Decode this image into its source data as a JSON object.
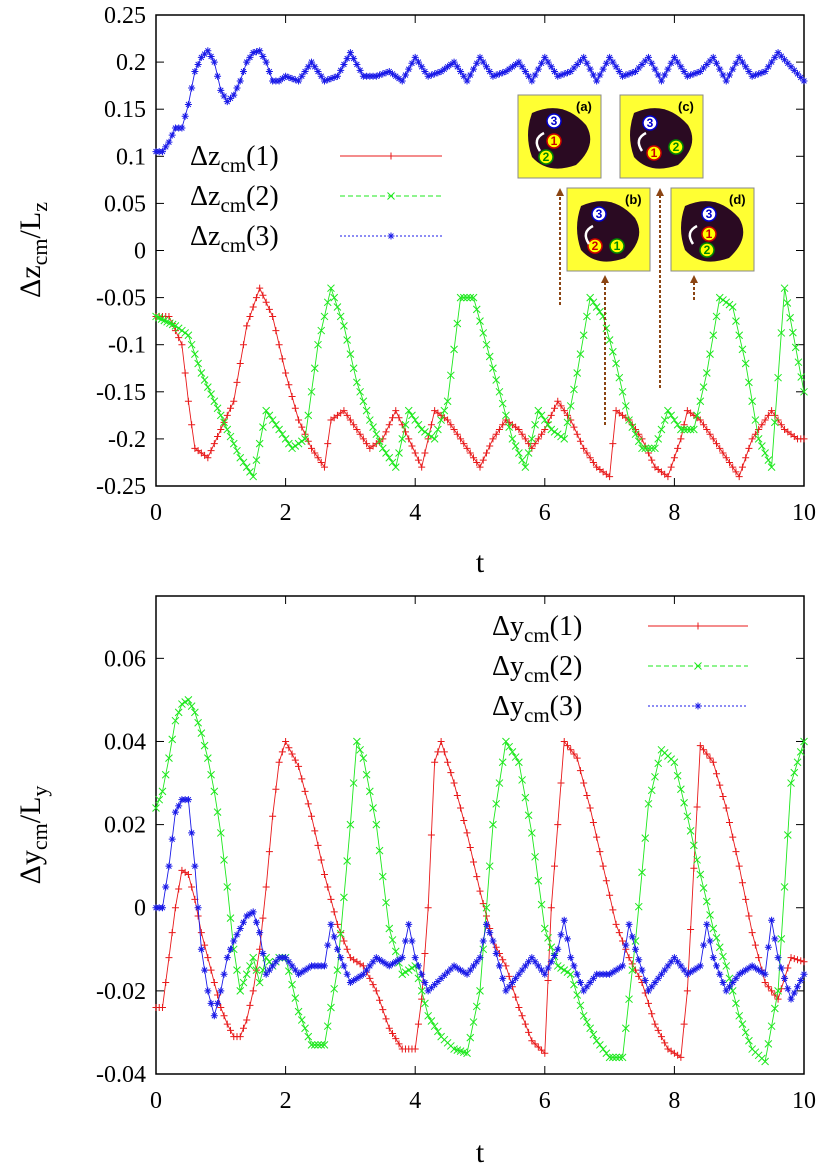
{
  "chart_data": [
    {
      "type": "line",
      "xlabel": "t",
      "ylabel": "Δz",
      "ylabel_sub": "cm",
      "ylabel_den": "/L",
      "ylabel_den_sub": "z",
      "xlim": [
        0,
        10
      ],
      "ylim": [
        -0.25,
        0.25
      ],
      "xticks": [
        "0",
        "2",
        "4",
        "6",
        "8",
        "10"
      ],
      "yticks": [
        "0.25",
        "0.2",
        "0.15",
        "0.1",
        "0.05",
        "0",
        "-0.05",
        "-0.1",
        "-0.15",
        "-0.2",
        "-0.25"
      ],
      "legend_position": "upper-left",
      "grid": false,
      "series": [
        {
          "name": "Δz(1)",
          "label_main": "Δz",
          "label_sub": "cm",
          "label_tail": "(1)",
          "color": "#e8191a",
          "marker": "plus",
          "x": [
            0,
            0.2,
            0.4,
            0.5,
            0.6,
            0.8,
            1.0,
            1.2,
            1.4,
            1.6,
            1.8,
            2.0,
            2.2,
            2.4,
            2.6,
            2.7,
            2.9,
            3.1,
            3.3,
            3.5,
            3.7,
            3.9,
            4.1,
            4.3,
            4.5,
            4.7,
            4.9,
            5.0,
            5.2,
            5.4,
            5.6,
            5.8,
            6.0,
            6.2,
            6.4,
            6.6,
            6.8,
            7.0,
            7.1,
            7.3,
            7.5,
            7.7,
            7.9,
            8.1,
            8.2,
            8.4,
            8.6,
            8.8,
            9.0,
            9.2,
            9.4,
            9.5,
            9.7,
            9.9,
            10.0
          ],
          "y": [
            -0.07,
            -0.07,
            -0.1,
            -0.16,
            -0.21,
            -0.22,
            -0.19,
            -0.16,
            -0.08,
            -0.04,
            -0.07,
            -0.13,
            -0.18,
            -0.21,
            -0.23,
            -0.18,
            -0.17,
            -0.19,
            -0.21,
            -0.2,
            -0.17,
            -0.2,
            -0.23,
            -0.17,
            -0.18,
            -0.2,
            -0.22,
            -0.23,
            -0.2,
            -0.18,
            -0.19,
            -0.21,
            -0.19,
            -0.16,
            -0.18,
            -0.21,
            -0.23,
            -0.24,
            -0.17,
            -0.18,
            -0.2,
            -0.23,
            -0.24,
            -0.2,
            -0.17,
            -0.18,
            -0.2,
            -0.22,
            -0.24,
            -0.2,
            -0.18,
            -0.17,
            -0.19,
            -0.2,
            -0.2
          ]
        },
        {
          "name": "Δz(2)",
          "label_main": "Δz",
          "label_sub": "cm",
          "label_tail": "(2)",
          "color": "#1ee81e",
          "marker": "cross",
          "x": [
            0,
            0.3,
            0.5,
            0.7,
            0.9,
            1.1,
            1.3,
            1.5,
            1.7,
            1.9,
            2.1,
            2.3,
            2.5,
            2.7,
            2.9,
            3.1,
            3.3,
            3.5,
            3.7,
            3.9,
            4.1,
            4.3,
            4.5,
            4.7,
            4.9,
            5.1,
            5.3,
            5.5,
            5.7,
            5.9,
            6.1,
            6.3,
            6.5,
            6.7,
            6.9,
            7.1,
            7.3,
            7.5,
            7.7,
            7.9,
            8.1,
            8.3,
            8.5,
            8.7,
            8.9,
            9.1,
            9.3,
            9.5,
            9.7,
            10.0
          ],
          "y": [
            -0.07,
            -0.08,
            -0.09,
            -0.13,
            -0.16,
            -0.19,
            -0.22,
            -0.24,
            -0.17,
            -0.19,
            -0.21,
            -0.2,
            -0.1,
            -0.04,
            -0.08,
            -0.14,
            -0.18,
            -0.21,
            -0.23,
            -0.17,
            -0.19,
            -0.2,
            -0.16,
            -0.05,
            -0.05,
            -0.1,
            -0.15,
            -0.2,
            -0.23,
            -0.17,
            -0.19,
            -0.2,
            -0.13,
            -0.05,
            -0.07,
            -0.12,
            -0.18,
            -0.21,
            -0.21,
            -0.17,
            -0.19,
            -0.19,
            -0.13,
            -0.05,
            -0.06,
            -0.12,
            -0.2,
            -0.23,
            -0.04,
            -0.15
          ]
        },
        {
          "name": "Δz(3)",
          "label_main": "Δz",
          "label_sub": "cm",
          "label_tail": "(3)",
          "color": "#1a1ae8",
          "marker": "star",
          "x": [
            0,
            0.1,
            0.2,
            0.3,
            0.4,
            0.5,
            0.6,
            0.7,
            0.8,
            0.9,
            1.0,
            1.1,
            1.2,
            1.3,
            1.4,
            1.5,
            1.6,
            1.7,
            1.8,
            1.9,
            2.0,
            2.2,
            2.4,
            2.6,
            2.8,
            3.0,
            3.2,
            3.4,
            3.6,
            3.8,
            4.0,
            4.2,
            4.4,
            4.6,
            4.8,
            5.0,
            5.2,
            5.4,
            5.6,
            5.8,
            6.0,
            6.2,
            6.4,
            6.6,
            6.8,
            7.0,
            7.2,
            7.4,
            7.6,
            7.8,
            8.0,
            8.2,
            8.4,
            8.6,
            8.8,
            9.0,
            9.2,
            9.4,
            9.6,
            9.8,
            10.0
          ],
          "y": [
            0.105,
            0.105,
            0.115,
            0.13,
            0.13,
            0.155,
            0.19,
            0.205,
            0.212,
            0.2,
            0.17,
            0.158,
            0.165,
            0.18,
            0.2,
            0.21,
            0.212,
            0.2,
            0.18,
            0.18,
            0.185,
            0.18,
            0.2,
            0.18,
            0.185,
            0.21,
            0.185,
            0.185,
            0.19,
            0.18,
            0.205,
            0.185,
            0.19,
            0.2,
            0.18,
            0.205,
            0.185,
            0.19,
            0.2,
            0.18,
            0.205,
            0.185,
            0.19,
            0.205,
            0.18,
            0.205,
            0.185,
            0.19,
            0.205,
            0.18,
            0.205,
            0.185,
            0.19,
            0.205,
            0.18,
            0.205,
            0.185,
            0.19,
            0.21,
            0.195,
            0.18
          ]
        }
      ],
      "insets": [
        {
          "label": "(a)",
          "numbers": [
            "3",
            "1",
            "2"
          ]
        },
        {
          "label": "(b)",
          "numbers": [
            "3",
            "2",
            "1"
          ]
        },
        {
          "label": "(c)",
          "numbers": [
            "3",
            "1",
            "2"
          ]
        },
        {
          "label": "(d)",
          "numbers": [
            "3",
            "1",
            "2"
          ]
        }
      ],
      "inset_colors": {
        "background": "#ffff33",
        "blob": "#2a0a22",
        "arrow": "#8b4513"
      }
    },
    {
      "type": "line",
      "xlabel": "t",
      "ylabel": "Δy",
      "ylabel_sub": "cm",
      "ylabel_den": "/L",
      "ylabel_den_sub": "y",
      "xlim": [
        0,
        10
      ],
      "ylim": [
        -0.04,
        0.075
      ],
      "xticks": [
        "0",
        "2",
        "4",
        "6",
        "8",
        "10"
      ],
      "yticks": [
        "0.06",
        "0.04",
        "0.02",
        "0",
        "-0.02",
        "-0.04"
      ],
      "legend_position": "upper-right",
      "grid": false,
      "series": [
        {
          "name": "Δy(1)",
          "label_main": "Δy",
          "label_sub": "cm",
          "label_tail": "(1)",
          "color": "#e8191a",
          "marker": "plus",
          "x": [
            0,
            0.1,
            0.2,
            0.3,
            0.4,
            0.5,
            0.6,
            0.7,
            0.8,
            0.9,
            1.0,
            1.1,
            1.2,
            1.3,
            1.4,
            1.5,
            1.6,
            1.7,
            1.8,
            1.9,
            2.0,
            2.2,
            2.4,
            2.6,
            2.8,
            3.0,
            3.2,
            3.4,
            3.6,
            3.8,
            4.0,
            4.1,
            4.2,
            4.3,
            4.4,
            4.6,
            4.8,
            5.0,
            5.2,
            5.4,
            5.6,
            5.8,
            6.0,
            6.1,
            6.3,
            6.5,
            6.7,
            6.9,
            7.1,
            7.3,
            7.5,
            7.7,
            7.9,
            8.1,
            8.2,
            8.4,
            8.6,
            8.8,
            9.0,
            9.2,
            9.4,
            9.6,
            9.8,
            10.0
          ],
          "y": [
            -0.024,
            -0.024,
            -0.012,
            0.0,
            0.009,
            0.008,
            0.002,
            -0.006,
            -0.012,
            -0.018,
            -0.024,
            -0.028,
            -0.031,
            -0.031,
            -0.027,
            -0.02,
            -0.01,
            0.005,
            0.022,
            0.035,
            0.04,
            0.034,
            0.022,
            0.008,
            -0.004,
            -0.012,
            -0.014,
            -0.02,
            -0.029,
            -0.034,
            -0.034,
            -0.022,
            0.0,
            0.035,
            0.04,
            0.03,
            0.018,
            0.004,
            -0.008,
            -0.014,
            -0.024,
            -0.032,
            -0.035,
            0.0,
            0.04,
            0.036,
            0.024,
            0.01,
            -0.004,
            -0.012,
            -0.018,
            -0.028,
            -0.034,
            -0.036,
            -0.02,
            0.039,
            0.035,
            0.024,
            0.01,
            -0.006,
            -0.018,
            -0.022,
            -0.012,
            -0.013
          ]
        },
        {
          "name": "Δy(2)",
          "label_main": "Δy",
          "label_sub": "cm",
          "label_tail": "(2)",
          "color": "#1ee81e",
          "marker": "cross",
          "x": [
            0,
            0.1,
            0.2,
            0.3,
            0.4,
            0.5,
            0.6,
            0.7,
            0.8,
            0.9,
            1.0,
            1.1,
            1.2,
            1.3,
            1.4,
            1.5,
            1.6,
            1.7,
            1.8,
            1.9,
            2.0,
            2.2,
            2.4,
            2.6,
            2.8,
            3.0,
            3.1,
            3.2,
            3.4,
            3.6,
            3.8,
            4.0,
            4.2,
            4.4,
            4.6,
            4.8,
            5.0,
            5.2,
            5.4,
            5.6,
            5.8,
            6.0,
            6.2,
            6.4,
            6.6,
            6.8,
            7.0,
            7.2,
            7.4,
            7.6,
            7.8,
            8.0,
            8.2,
            8.4,
            8.6,
            8.8,
            9.0,
            9.2,
            9.4,
            9.6,
            9.8,
            10.0
          ],
          "y": [
            0.024,
            0.028,
            0.036,
            0.045,
            0.049,
            0.05,
            0.047,
            0.042,
            0.036,
            0.028,
            0.018,
            0.005,
            -0.01,
            -0.02,
            -0.016,
            -0.012,
            -0.018,
            -0.012,
            -0.014,
            -0.012,
            -0.012,
            -0.025,
            -0.033,
            -0.033,
            -0.015,
            0.02,
            0.04,
            0.036,
            0.02,
            -0.005,
            -0.016,
            -0.014,
            -0.026,
            -0.031,
            -0.034,
            -0.035,
            -0.02,
            0.02,
            0.04,
            0.035,
            0.018,
            -0.005,
            -0.014,
            -0.016,
            -0.026,
            -0.032,
            -0.036,
            -0.036,
            -0.008,
            0.025,
            0.038,
            0.035,
            0.022,
            0.008,
            -0.005,
            -0.014,
            -0.026,
            -0.034,
            -0.037,
            -0.02,
            0.03,
            0.04
          ]
        },
        {
          "name": "Δy(3)",
          "label_main": "Δy",
          "label_sub": "cm",
          "label_tail": "(3)",
          "color": "#1a1ae8",
          "marker": "star",
          "x": [
            0,
            0.1,
            0.2,
            0.3,
            0.4,
            0.5,
            0.6,
            0.7,
            0.8,
            0.9,
            1.0,
            1.1,
            1.2,
            1.3,
            1.4,
            1.5,
            1.6,
            1.7,
            1.8,
            1.9,
            2.0,
            2.2,
            2.4,
            2.6,
            2.7,
            2.8,
            3.0,
            3.2,
            3.4,
            3.6,
            3.8,
            3.9,
            4.0,
            4.2,
            4.4,
            4.6,
            4.8,
            5.0,
            5.1,
            5.2,
            5.4,
            5.6,
            5.8,
            6.0,
            6.2,
            6.3,
            6.4,
            6.6,
            6.8,
            7.0,
            7.2,
            7.3,
            7.4,
            7.6,
            7.8,
            8.0,
            8.2,
            8.4,
            8.5,
            8.6,
            8.8,
            9.0,
            9.2,
            9.4,
            9.5,
            9.6,
            9.8,
            10.0
          ],
          "y": [
            0.0,
            0.0,
            0.01,
            0.023,
            0.026,
            0.026,
            0.01,
            -0.01,
            -0.02,
            -0.026,
            -0.02,
            -0.012,
            -0.008,
            -0.005,
            -0.002,
            -0.001,
            -0.006,
            -0.016,
            -0.014,
            -0.012,
            -0.012,
            -0.016,
            -0.014,
            -0.014,
            -0.004,
            -0.01,
            -0.018,
            -0.016,
            -0.012,
            -0.014,
            -0.012,
            -0.004,
            -0.012,
            -0.02,
            -0.017,
            -0.014,
            -0.016,
            -0.012,
            -0.004,
            -0.008,
            -0.02,
            -0.016,
            -0.012,
            -0.016,
            -0.01,
            -0.003,
            -0.012,
            -0.02,
            -0.016,
            -0.016,
            -0.014,
            -0.004,
            -0.01,
            -0.02,
            -0.016,
            -0.012,
            -0.016,
            -0.014,
            -0.004,
            -0.012,
            -0.02,
            -0.016,
            -0.014,
            -0.016,
            -0.003,
            -0.012,
            -0.022,
            -0.016
          ]
        }
      ]
    }
  ]
}
